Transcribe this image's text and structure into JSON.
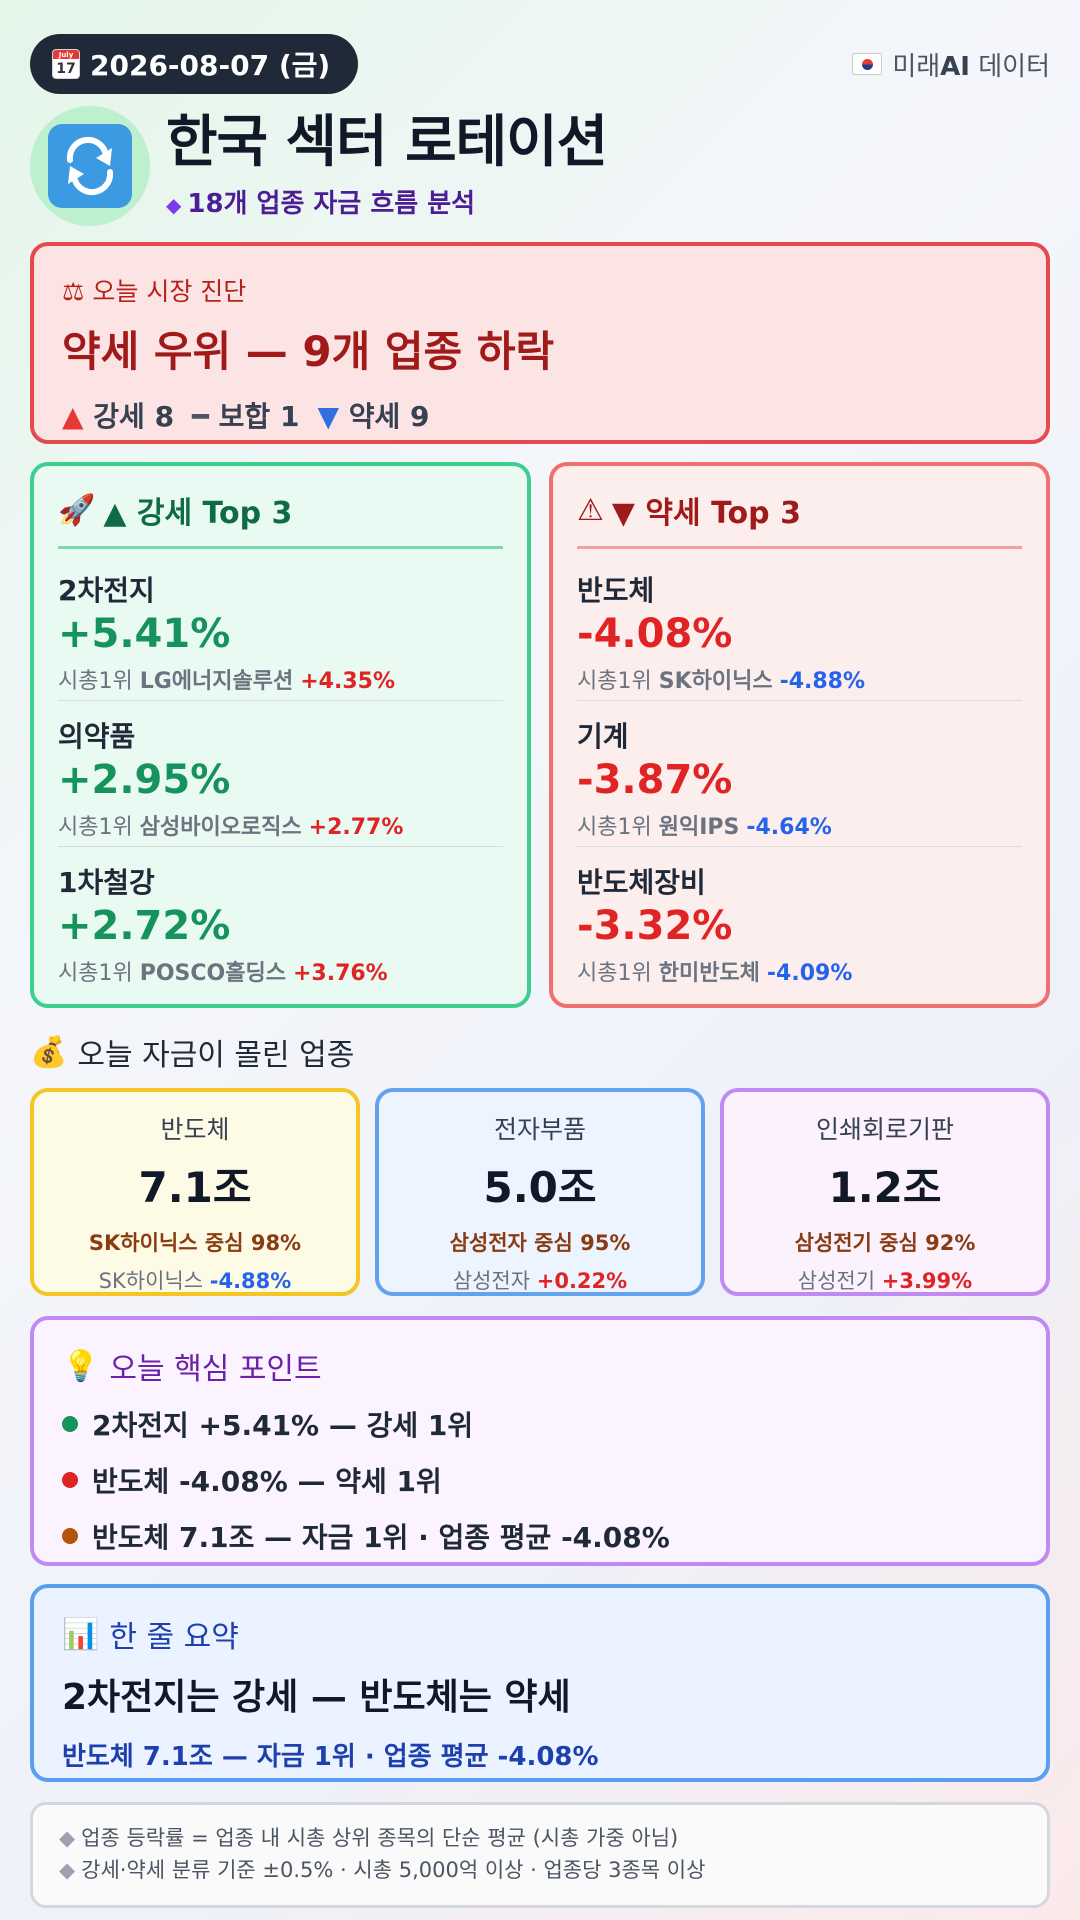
{
  "header": {
    "date": "2026-08-07 (금)",
    "calendar_month": "July",
    "brand_prefix": "미래",
    "brand_bold": "AI",
    "brand_suffix": " 데이터",
    "title": "한국 섹터 로테이션",
    "subtitle": "18개 업종 자금 흐름 분석"
  },
  "diagnosis": {
    "label": "오늘 시장 진단",
    "title": "약세 우위 — 9개 업종 하락",
    "strong_label": "강세 8",
    "neutral_label": "보합 1",
    "weak_label": "약세 9"
  },
  "top_up": {
    "title": "▲ 강세 Top 3",
    "items": [
      {
        "name": "2차전지",
        "pct": "+5.41%",
        "leader_prefix": "시총1위",
        "leader": "LG에너지솔루션",
        "leader_pct": "+4.35%"
      },
      {
        "name": "의약품",
        "pct": "+2.95%",
        "leader_prefix": "시총1위",
        "leader": "삼성바이오로직스",
        "leader_pct": "+2.77%"
      },
      {
        "name": "1차철강",
        "pct": "+2.72%",
        "leader_prefix": "시총1위",
        "leader": "POSCO홀딩스",
        "leader_pct": "+3.76%"
      }
    ]
  },
  "top_down": {
    "title": "▼ 약세 Top 3",
    "items": [
      {
        "name": "반도체",
        "pct": "-4.08%",
        "leader_prefix": "시총1위",
        "leader": "SK하이닉스",
        "leader_pct": "-4.88%"
      },
      {
        "name": "기계",
        "pct": "-3.87%",
        "leader_prefix": "시총1위",
        "leader": "원익IPS",
        "leader_pct": "-4.64%"
      },
      {
        "name": "반도체장비",
        "pct": "-3.32%",
        "leader_prefix": "시총1위",
        "leader": "한미반도체",
        "leader_pct": "-4.09%"
      }
    ]
  },
  "money_flow": {
    "title": "오늘 자금이 몰린 업종",
    "cards": [
      {
        "name": "반도체",
        "amount": "7.1조",
        "focus": "SK하이닉스 중심 98%",
        "stock": "SK하이닉스",
        "stock_pct": "-4.88%"
      },
      {
        "name": "전자부품",
        "amount": "5.0조",
        "focus": "삼성전자 중심 95%",
        "stock": "삼성전자",
        "stock_pct": "+0.22%"
      },
      {
        "name": "인쇄회로기판",
        "amount": "1.2조",
        "focus": "삼성전기 중심 92%",
        "stock": "삼성전기",
        "stock_pct": "+3.99%"
      }
    ]
  },
  "key_points": {
    "title": "오늘 핵심 포인트",
    "items": [
      {
        "text": "2차전지 +5.41% — 강세 1위",
        "color": "#16935c"
      },
      {
        "text": "반도체 -4.08% — 약세 1위",
        "color": "#e02424"
      },
      {
        "text": "반도체 7.1조 — 자금 1위 · 업종 평균 -4.08%",
        "color": "#b45309"
      }
    ]
  },
  "summary": {
    "title": "한 줄 요약",
    "headline": "2차전지는 강세 — 반도체는 약세",
    "sub": "반도체 7.1조 — 자금 1위 · 업종 평균 -4.08%"
  },
  "footnote": {
    "lines": [
      "업종 등락률 = 업종 내 시총 상위 종목의 단순 평균 (시총 가중 아님)",
      "강세·약세 분류 기준 ±0.5% · 시총 5,000억 이상 · 업종당 3종목 이상"
    ]
  },
  "colors": {
    "up": "#16935c",
    "down": "#e02424",
    "accent_purple": "#7c3aed",
    "accent_blue": "#1e40af"
  }
}
